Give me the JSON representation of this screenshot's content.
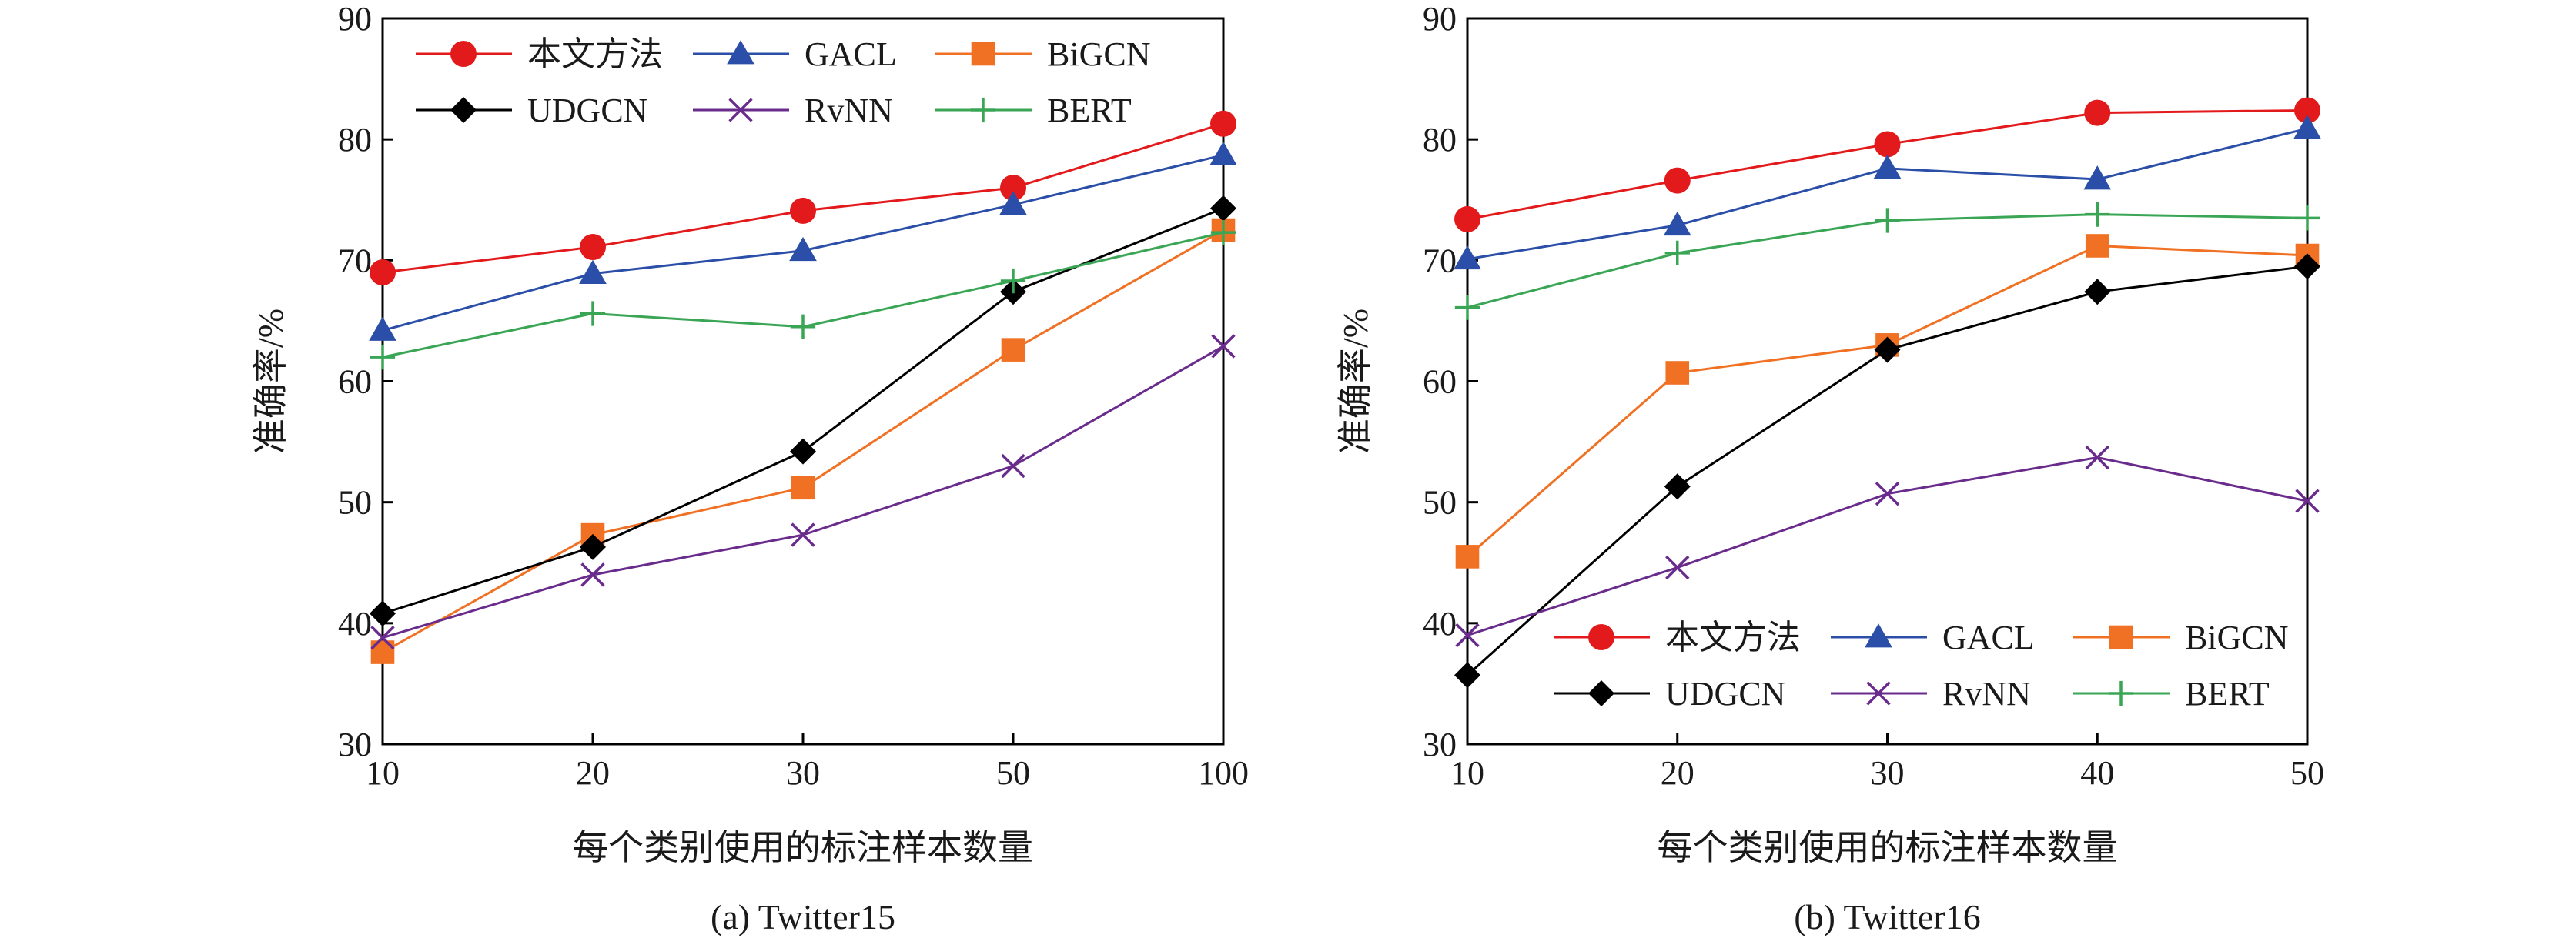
{
  "chart_data": [
    {
      "type": "line",
      "caption": "(a) Twitter15",
      "xlabel": "每个类别使用的标注样本数量",
      "ylabel": "准确率/%",
      "ylim": [
        30,
        90
      ],
      "yticks": [
        "30",
        "40",
        "50",
        "60",
        "70",
        "80",
        "90"
      ],
      "categories": [
        "10",
        "20",
        "30",
        "50",
        "100"
      ],
      "legend_position": "top-left",
      "series": [
        {
          "name": "本文方法",
          "color": "#e31a1c",
          "marker": "circle",
          "values": [
            69.0,
            71.1,
            74.1,
            76.0,
            81.3
          ]
        },
        {
          "name": "GACL",
          "color": "#2b4fa8",
          "marker": "triangle",
          "values": [
            64.2,
            68.9,
            70.8,
            74.6,
            78.7
          ]
        },
        {
          "name": "BiGCN",
          "color": "#f07123",
          "marker": "square",
          "values": [
            37.6,
            47.3,
            51.2,
            62.6,
            72.5
          ]
        },
        {
          "name": "UDGCN",
          "color": "#000000",
          "marker": "diamond",
          "values": [
            40.8,
            46.3,
            54.2,
            67.4,
            74.3
          ]
        },
        {
          "name": "RvNN",
          "color": "#6a2c8c",
          "marker": "x",
          "values": [
            38.8,
            44.0,
            47.3,
            53.0,
            62.9
          ]
        },
        {
          "name": "BERT",
          "color": "#3aa655",
          "marker": "plus",
          "values": [
            62.0,
            65.6,
            64.5,
            68.3,
            72.3
          ]
        }
      ]
    },
    {
      "type": "line",
      "caption": "(b) Twitter16",
      "xlabel": "每个类别使用的标注样本数量",
      "ylabel": "准确率/%",
      "ylim": [
        30,
        90
      ],
      "yticks": [
        "30",
        "40",
        "50",
        "60",
        "70",
        "80",
        "90"
      ],
      "categories": [
        "10",
        "20",
        "30",
        "40",
        "50"
      ],
      "legend_position": "bottom-right",
      "series": [
        {
          "name": "本文方法",
          "color": "#e31a1c",
          "marker": "circle",
          "values": [
            73.4,
            76.6,
            79.6,
            82.2,
            82.4
          ]
        },
        {
          "name": "GACL",
          "color": "#2b4fa8",
          "marker": "triangle",
          "values": [
            70.1,
            72.9,
            77.6,
            76.7,
            80.9
          ]
        },
        {
          "name": "BiGCN",
          "color": "#f07123",
          "marker": "square",
          "values": [
            45.5,
            60.7,
            63.0,
            71.2,
            70.4
          ]
        },
        {
          "name": "UDGCN",
          "color": "#000000",
          "marker": "diamond",
          "values": [
            35.7,
            51.3,
            62.6,
            67.4,
            69.5
          ]
        },
        {
          "name": "RvNN",
          "color": "#6a2c8c",
          "marker": "x",
          "values": [
            39.0,
            44.6,
            50.7,
            53.7,
            50.1
          ]
        },
        {
          "name": "BERT",
          "color": "#3aa655",
          "marker": "plus",
          "values": [
            66.1,
            70.6,
            73.3,
            73.8,
            73.5
          ]
        }
      ]
    }
  ]
}
